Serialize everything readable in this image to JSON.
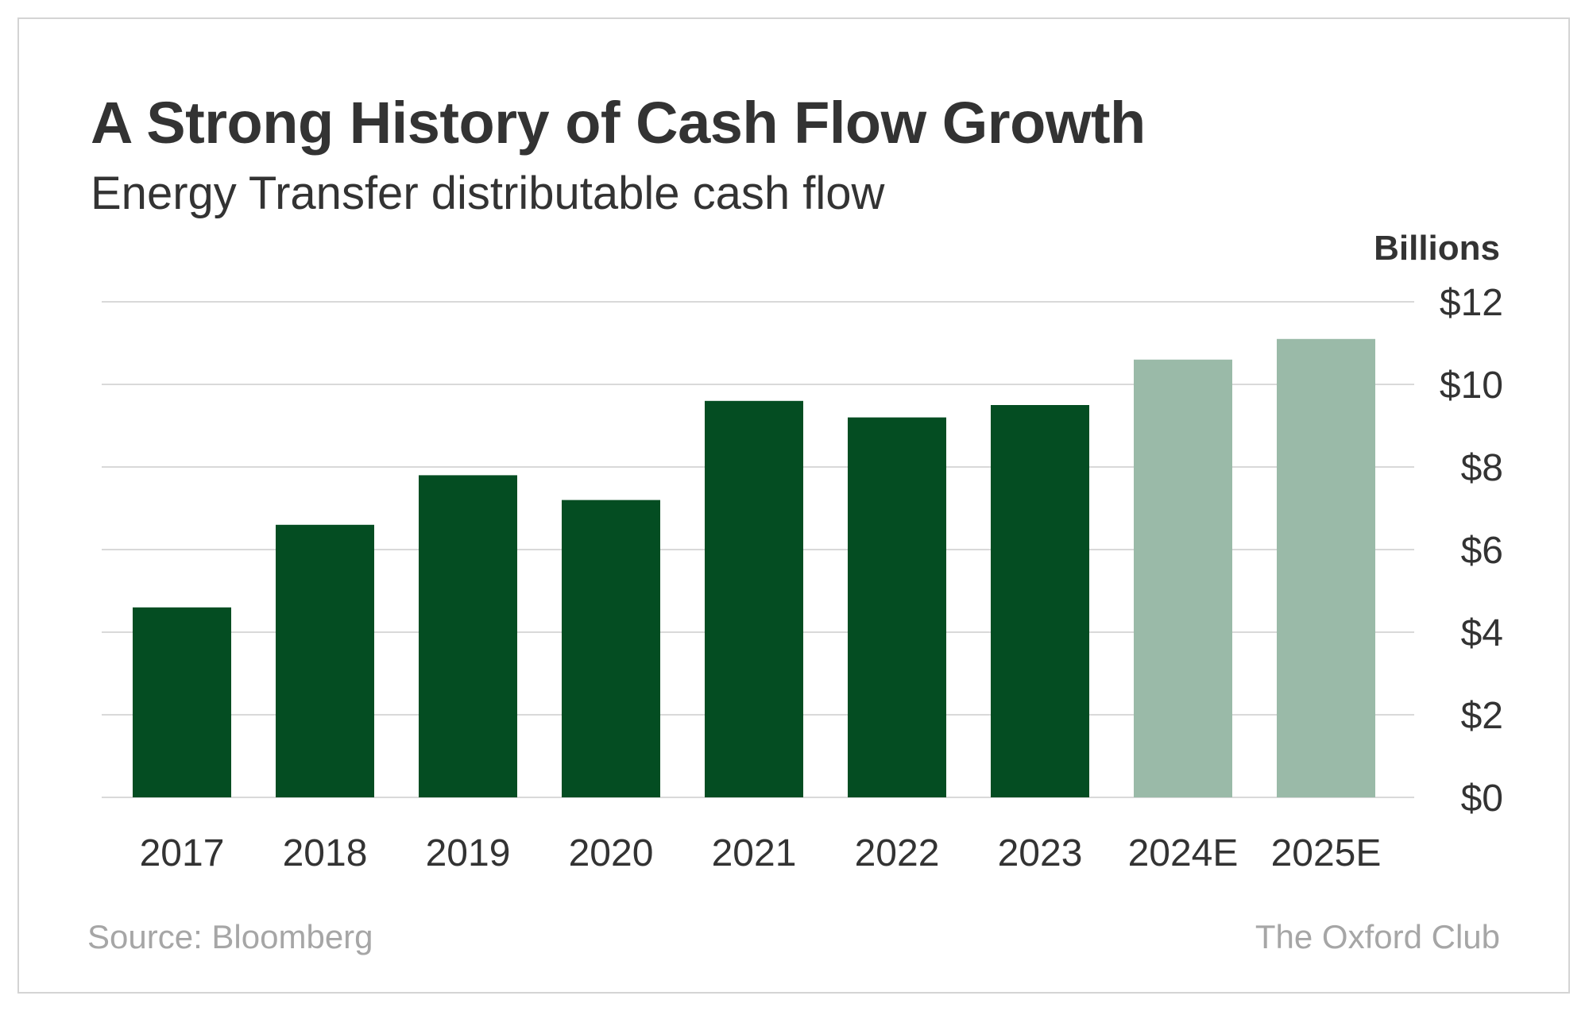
{
  "header": {
    "title": "A Strong History of Cash Flow Growth",
    "subtitle": "Energy Transfer distributable cash flow",
    "unit_label": "Billions"
  },
  "footer": {
    "source": "Source: Bloomberg",
    "brand": "The Oxford Club"
  },
  "colors": {
    "actual": "#044d22",
    "estimate": "#9abaa8",
    "grid": "#d9d9d9",
    "text": "#333333"
  },
  "chart_data": {
    "type": "bar",
    "title": "A Strong History of Cash Flow Growth",
    "subtitle": "Energy Transfer distributable cash flow",
    "ylabel": "Billions",
    "categories": [
      "2017",
      "2018",
      "2019",
      "2020",
      "2021",
      "2022",
      "2023",
      "2024E",
      "2025E"
    ],
    "values": [
      4.6,
      6.6,
      7.8,
      7.2,
      9.6,
      9.2,
      9.5,
      10.6,
      11.1
    ],
    "estimate": [
      false,
      false,
      false,
      false,
      false,
      false,
      false,
      true,
      true
    ],
    "ylim": [
      0,
      12
    ],
    "yticks": [
      0,
      2,
      4,
      6,
      8,
      10,
      12
    ],
    "ytick_labels": [
      "$0",
      "$2",
      "$4",
      "$6",
      "$8",
      "$10",
      "$12"
    ],
    "grid": true,
    "y_axis_side": "right"
  }
}
